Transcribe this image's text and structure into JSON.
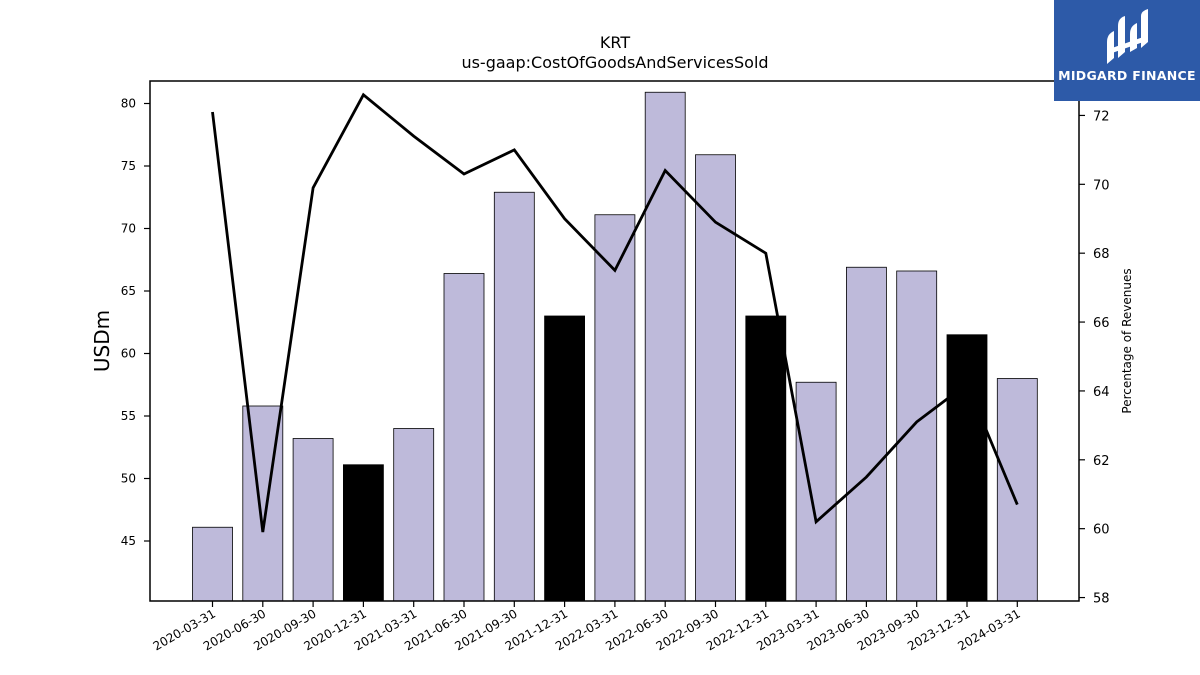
{
  "chart_data": {
    "type": "bar",
    "title": "KRT",
    "subtitle": "us-gaap:CostOfGoodsAndServicesSold",
    "ylabel": "USDm",
    "y2label": "Percentage of Revenues",
    "categories": [
      "2020-03-31",
      "2020-06-30",
      "2020-09-30",
      "2020-12-31",
      "2021-03-31",
      "2021-06-30",
      "2021-09-30",
      "2021-12-31",
      "2022-03-31",
      "2022-06-30",
      "2022-09-30",
      "2022-12-31",
      "2023-03-31",
      "2023-06-30",
      "2023-09-30",
      "2023-12-31",
      "2024-03-31"
    ],
    "series": [
      {
        "kind": "bar",
        "axis": "left",
        "values": [
          46.1,
          55.8,
          53.2,
          51.1,
          54.0,
          66.4,
          72.9,
          63.0,
          71.1,
          80.9,
          75.9,
          63.0,
          57.7,
          66.9,
          66.6,
          61.5,
          58.0
        ],
        "colors": [
          "#bebada",
          "#bebada",
          "#bebada",
          "#000000",
          "#bebada",
          "#bebada",
          "#bebada",
          "#000000",
          "#bebada",
          "#bebada",
          "#bebada",
          "#000000",
          "#bebada",
          "#bebada",
          "#bebada",
          "#000000",
          "#bebada"
        ]
      },
      {
        "kind": "line",
        "axis": "right",
        "color": "#000000",
        "values": [
          72.1,
          59.9,
          69.9,
          72.6,
          71.4,
          70.3,
          71.0,
          69.0,
          67.5,
          70.4,
          68.9,
          68.0,
          60.2,
          61.5,
          63.1,
          64.2,
          60.7
        ]
      }
    ],
    "ylim": [
      40.2,
      81.8
    ],
    "y2lim": [
      57.9,
      73.0
    ],
    "yticks": [
      45,
      50,
      55,
      60,
      65,
      70,
      75,
      80
    ],
    "y2ticks": [
      58,
      60,
      62,
      64,
      66,
      68,
      70,
      72
    ],
    "grid": false,
    "legend": "none"
  },
  "logo": {
    "text": "MIDGARD FINANCE",
    "background": "#2d5aa8",
    "icon": "midgard-logo-icon"
  }
}
